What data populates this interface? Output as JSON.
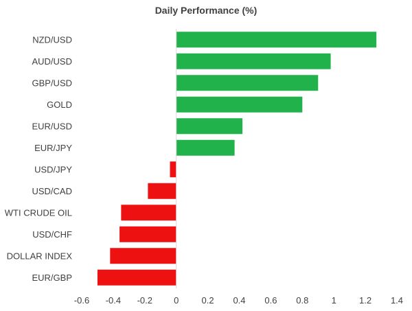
{
  "chart_data": {
    "type": "bar",
    "orientation": "horizontal",
    "title": "Daily Performance (%)",
    "xlabel": "",
    "ylabel": "",
    "categories": [
      "NZD/USD",
      "AUD/USD",
      "GBP/USD",
      "GOLD",
      "EUR/USD",
      "EUR/JPY",
      "USD/JPY",
      "USD/CAD",
      "WTI CRUDE OIL",
      "USD/CHF",
      "DOLLAR INDEX",
      "EUR/GBP"
    ],
    "values": [
      1.27,
      0.98,
      0.9,
      0.8,
      0.42,
      0.37,
      -0.04,
      -0.18,
      -0.35,
      -0.36,
      -0.42,
      -0.5
    ],
    "xlim": [
      -0.6,
      1.4
    ],
    "xticks": [
      "-0.6",
      "-0.4",
      "-0.2",
      "0",
      "0.2",
      "0.4",
      "0.6",
      "0.8",
      "1",
      "1.2",
      "1.4"
    ],
    "grid": false,
    "legend": "none",
    "colors": {
      "positive": "#22b24c",
      "negative": "#ee1111",
      "axis": "#d9d9d9"
    }
  }
}
